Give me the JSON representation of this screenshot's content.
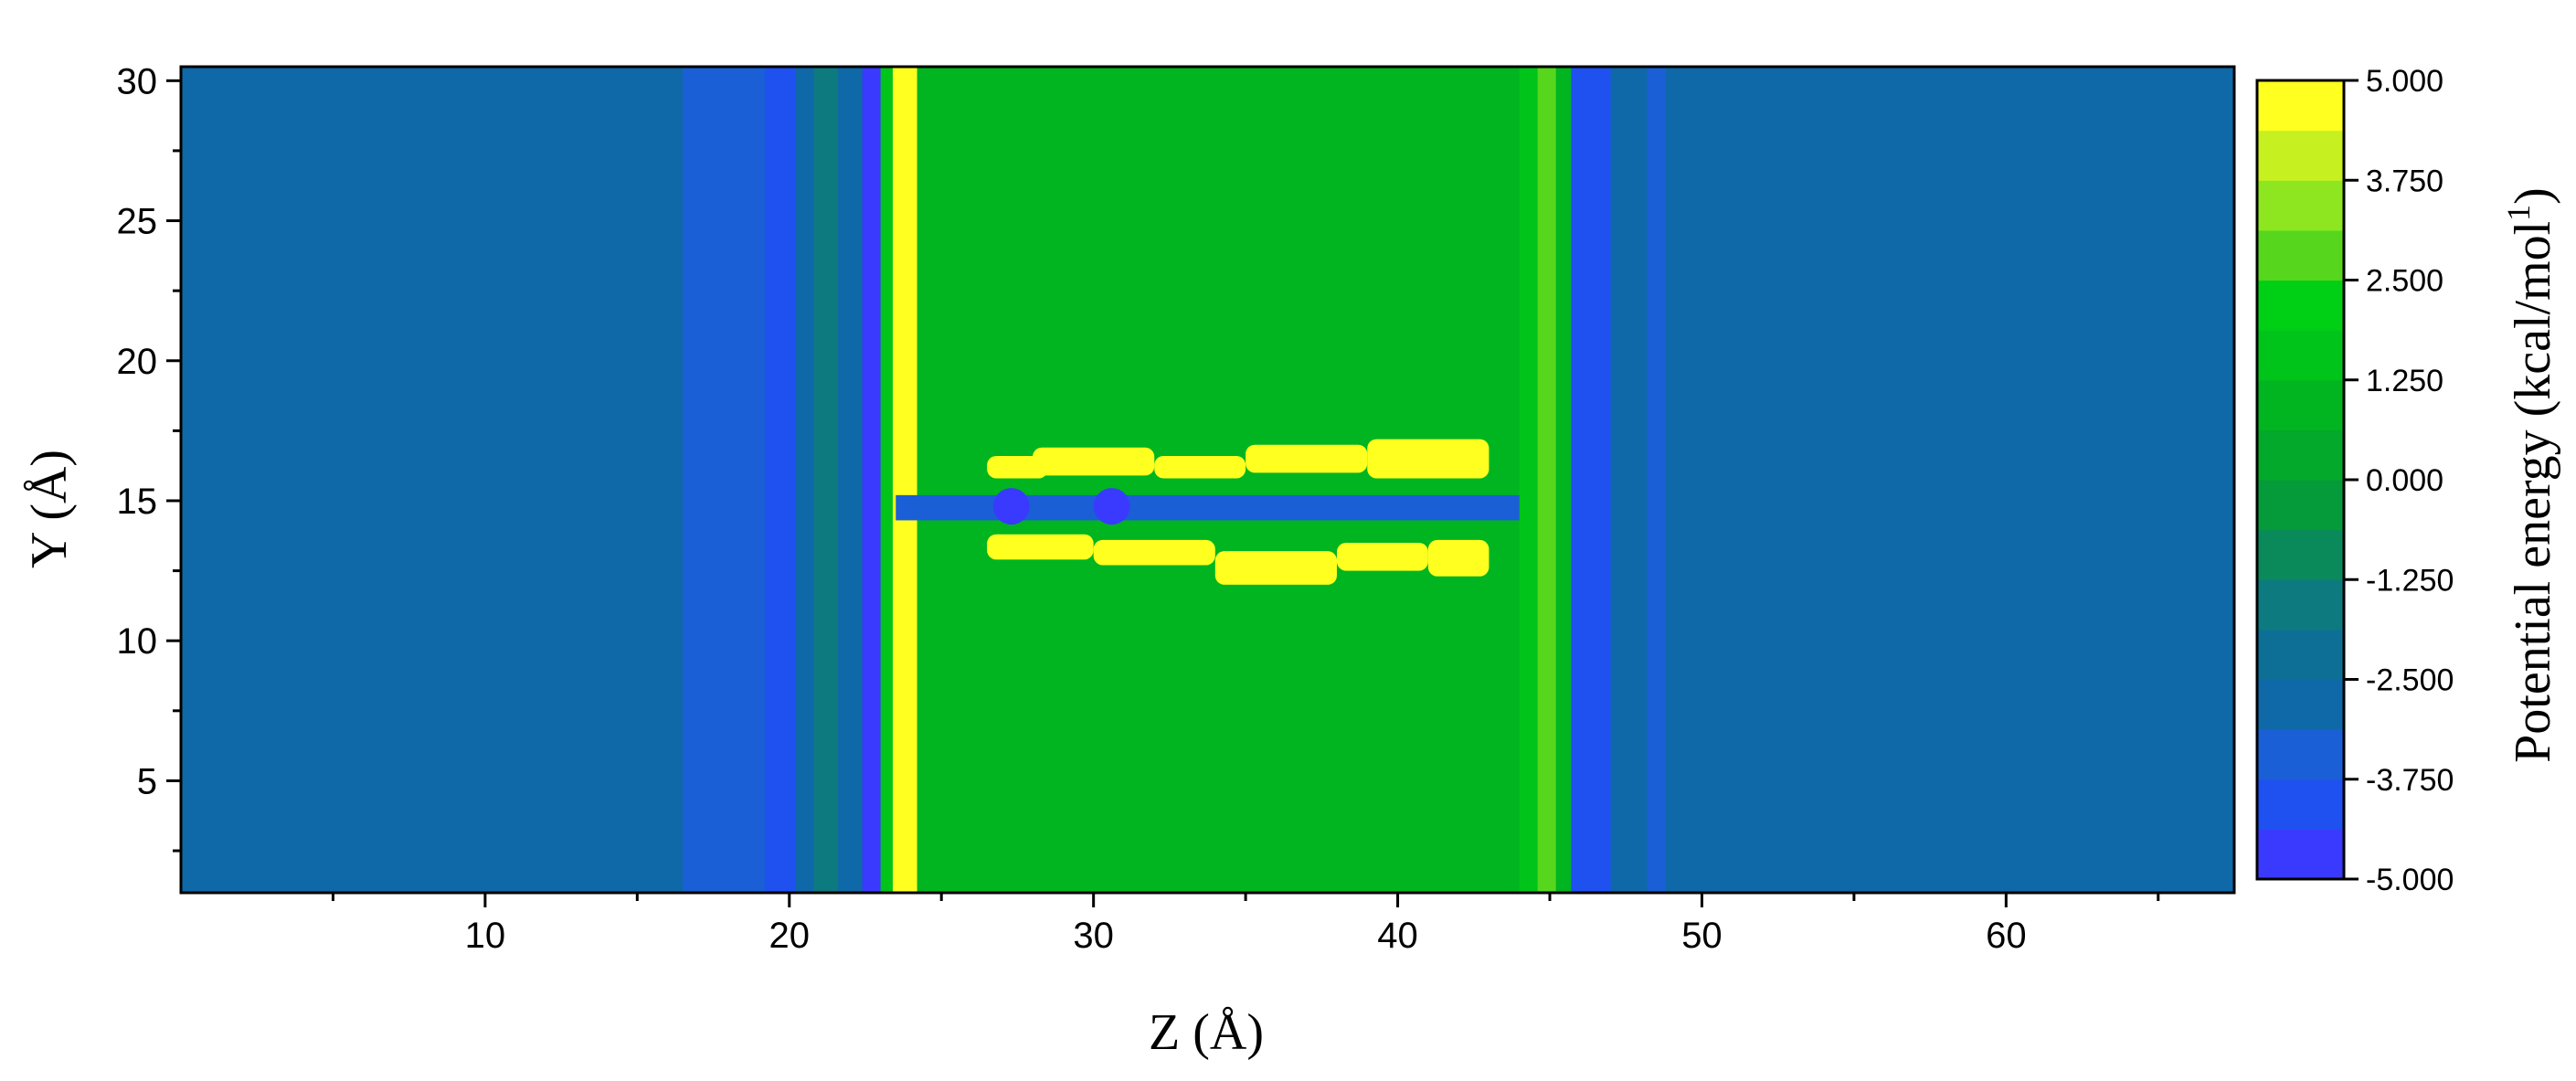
{
  "chart_data": {
    "type": "heatmap",
    "xlabel": "Z (Å)",
    "ylabel": "Y (Å)",
    "xlim": [
      0,
      67.5
    ],
    "ylim": [
      1,
      30.5
    ],
    "xticks": [
      10,
      20,
      30,
      40,
      50,
      60
    ],
    "yticks": [
      5,
      10,
      15,
      20,
      25,
      30
    ],
    "colorbar": {
      "label_main": "Potential energy (kcal/mol",
      "label_sup": "1",
      "label_end": ")",
      "range": [
        -5.0,
        5.0
      ],
      "tick_values": [
        5.0,
        3.75,
        2.5,
        1.25,
        0.0,
        -1.25,
        -2.5,
        -3.75,
        -5.0
      ],
      "tick_labels": [
        "5.000",
        "3.750",
        "2.500",
        "1.250",
        "0.000",
        "-1.250",
        "-2.500",
        "-3.750",
        "-5.000"
      ],
      "levels": [
        {
          "from": -5.0,
          "to": -4.375,
          "color": "#3a3aff"
        },
        {
          "from": -4.375,
          "to": -3.75,
          "color": "#1f50f0"
        },
        {
          "from": -3.75,
          "to": -3.125,
          "color": "#1a5fd6"
        },
        {
          "from": -3.125,
          "to": -2.5,
          "color": "#0f68a8"
        },
        {
          "from": -2.5,
          "to": -1.875,
          "color": "#0d6f96"
        },
        {
          "from": -1.875,
          "to": -1.25,
          "color": "#0d7a80"
        },
        {
          "from": -1.25,
          "to": -0.625,
          "color": "#0a8a5a"
        },
        {
          "from": -0.625,
          "to": 0.0,
          "color": "#059a3a"
        },
        {
          "from": 0.0,
          "to": 0.625,
          "color": "#03a92a"
        },
        {
          "from": 0.625,
          "to": 1.25,
          "color": "#00b520"
        },
        {
          "from": 1.25,
          "to": 1.875,
          "color": "#00c41a"
        },
        {
          "from": 1.875,
          "to": 2.5,
          "color": "#00d015"
        },
        {
          "from": 2.5,
          "to": 3.125,
          "color": "#57d61e"
        },
        {
          "from": 3.125,
          "to": 3.75,
          "color": "#8ee620"
        },
        {
          "from": 3.75,
          "to": 4.375,
          "color": "#c6f020"
        },
        {
          "from": 4.375,
          "to": 5.0,
          "color": "#ffff20"
        }
      ]
    },
    "z_bands": [
      {
        "z0": 0.0,
        "z1": 16.5,
        "value": -2.6
      },
      {
        "z0": 16.5,
        "z1": 19.2,
        "value": -3.2
      },
      {
        "z0": 19.2,
        "z1": 20.2,
        "value": -4.0
      },
      {
        "z0": 20.2,
        "z1": 20.8,
        "value": -2.8
      },
      {
        "z0": 20.8,
        "z1": 21.6,
        "value": -1.6
      },
      {
        "z0": 21.6,
        "z1": 22.4,
        "value": -3.0
      },
      {
        "z0": 22.4,
        "z1": 23.0,
        "value": -4.8
      },
      {
        "z0": 23.0,
        "z1": 23.4,
        "value": 1.5
      },
      {
        "z0": 23.4,
        "z1": 24.2,
        "value": 4.7
      },
      {
        "z0": 24.2,
        "z1": 44.0,
        "value": 1.0
      },
      {
        "z0": 44.0,
        "z1": 44.6,
        "value": 1.6
      },
      {
        "z0": 44.6,
        "z1": 45.2,
        "value": 2.9
      },
      {
        "z0": 45.2,
        "z1": 45.7,
        "value": 1.0
      },
      {
        "z0": 45.7,
        "z1": 47.0,
        "value": -3.8
      },
      {
        "z0": 47.0,
        "z1": 48.2,
        "value": -2.7
      },
      {
        "z0": 48.2,
        "z1": 48.8,
        "value": -3.4
      },
      {
        "z0": 48.8,
        "z1": 67.5,
        "value": -3.0
      }
    ],
    "channel": {
      "z0": 23.5,
      "z1": 44.0,
      "y0": 14.3,
      "y1": 15.2,
      "value": -3.2
    },
    "hotspots": [
      {
        "z0": 26.5,
        "z1": 28.5,
        "y0": 15.8,
        "y1": 16.6,
        "value": 4.7
      },
      {
        "z0": 28.0,
        "z1": 32.0,
        "y0": 15.9,
        "y1": 16.9,
        "value": 4.7
      },
      {
        "z0": 32.0,
        "z1": 35.0,
        "y0": 15.8,
        "y1": 16.6,
        "value": 4.7
      },
      {
        "z0": 35.0,
        "z1": 39.0,
        "y0": 16.0,
        "y1": 17.0,
        "value": 4.7
      },
      {
        "z0": 39.0,
        "z1": 43.0,
        "y0": 15.8,
        "y1": 17.2,
        "value": 4.7
      },
      {
        "z0": 26.5,
        "z1": 30.0,
        "y0": 12.9,
        "y1": 13.8,
        "value": 4.7
      },
      {
        "z0": 30.0,
        "z1": 34.0,
        "y0": 12.7,
        "y1": 13.6,
        "value": 4.7
      },
      {
        "z0": 34.0,
        "z1": 38.0,
        "y0": 12.0,
        "y1": 13.2,
        "value": 4.7
      },
      {
        "z0": 38.0,
        "z1": 41.0,
        "y0": 12.5,
        "y1": 13.5,
        "value": 4.7
      },
      {
        "z0": 41.0,
        "z1": 43.0,
        "y0": 12.3,
        "y1": 13.6,
        "value": 4.7
      }
    ],
    "minima": [
      {
        "z": 27.3,
        "y": 14.8,
        "value": -5.0
      },
      {
        "z": 30.6,
        "y": 14.8,
        "value": -5.0
      }
    ]
  }
}
